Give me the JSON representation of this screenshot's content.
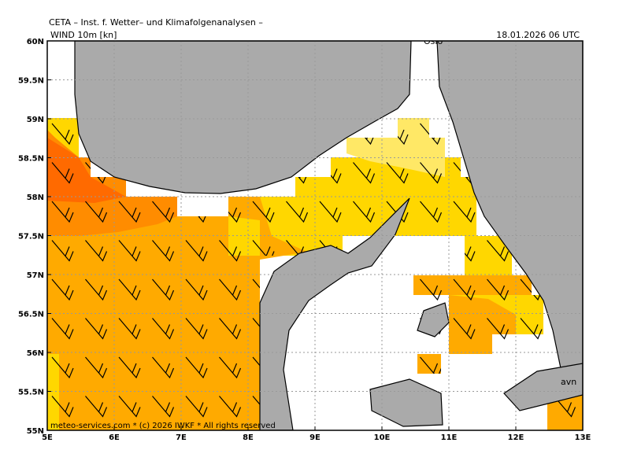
{
  "header": {
    "title": "CETA – Inst. f. Wetter– und Klimafolgenanalysen –",
    "variable": "WIND 10m [kn]",
    "time": "18.01.2026 06 UTC"
  },
  "map": {
    "lon_labels": [
      "5E",
      "6E",
      "7E",
      "8E",
      "9E",
      "10E",
      "11E",
      "12E",
      "13E"
    ],
    "lat_labels": [
      "60N",
      "59.5N",
      "59N",
      "58.5N",
      "58N",
      "57.5N",
      "57N",
      "56.5N",
      "56N",
      "55.5N",
      "55N"
    ],
    "places": [
      "Oslo",
      "avn"
    ],
    "footer": "meteo-services.com * (c) 2026 IWKF * All rights reserved"
  }
}
